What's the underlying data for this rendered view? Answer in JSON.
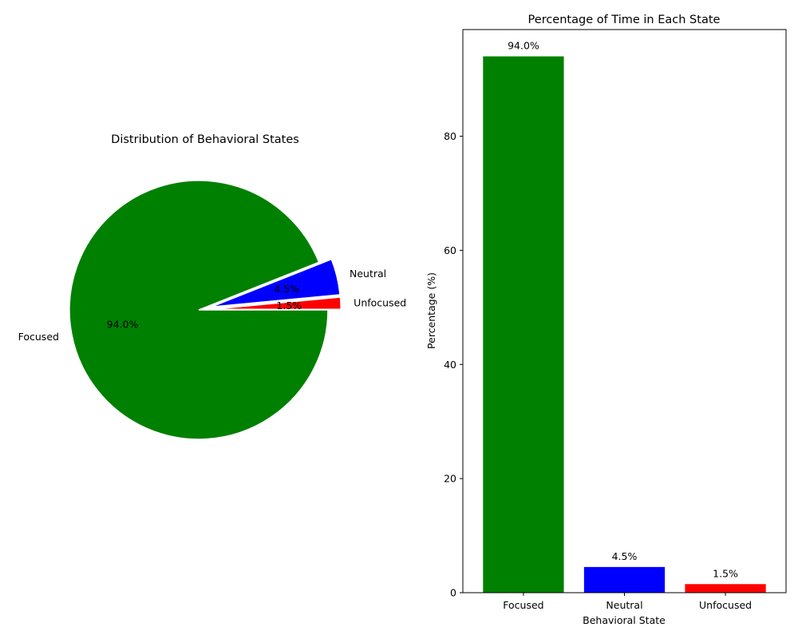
{
  "chart_data": [
    {
      "type": "pie",
      "title": "Distribution of Behavioral States",
      "labels": [
        "Focused",
        "Neutral",
        "Unfocused"
      ],
      "values": [
        94.0,
        4.5,
        1.5
      ],
      "value_labels": [
        "94.0%",
        "4.5%",
        "1.5%"
      ],
      "colors": [
        "#008000",
        "#0000ff",
        "#ff0000"
      ],
      "exploded": [
        false,
        true,
        true
      ],
      "start_angle_deg": 0,
      "direction": "clockwise"
    },
    {
      "type": "bar",
      "title": "Percentage of Time in Each State",
      "xlabel": "Behavioral State",
      "ylabel": "Percentage (%)",
      "categories": [
        "Focused",
        "Neutral",
        "Unfocused"
      ],
      "values": [
        94.0,
        4.5,
        1.5
      ],
      "value_labels": [
        "94.0%",
        "4.5%",
        "1.5%"
      ],
      "colors": [
        "#008000",
        "#0000ff",
        "#ff0000"
      ],
      "ylim": [
        0,
        98.7
      ],
      "yticks": [
        0,
        20,
        40,
        60,
        80
      ],
      "grid": false
    }
  ]
}
